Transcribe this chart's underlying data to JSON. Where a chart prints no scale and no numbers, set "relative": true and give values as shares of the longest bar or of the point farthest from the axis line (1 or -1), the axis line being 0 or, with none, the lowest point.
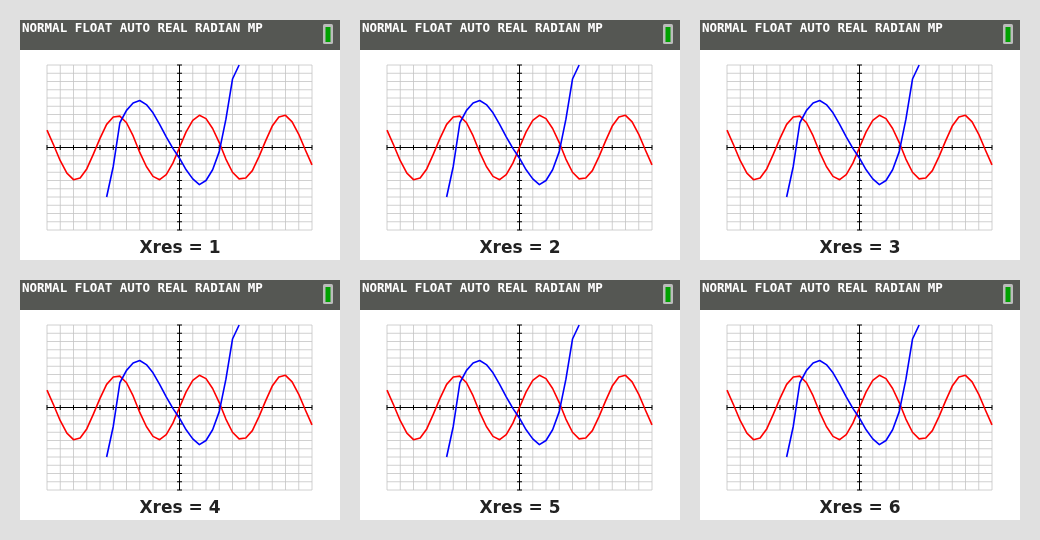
{
  "chart_data": [
    {
      "type": "line",
      "title": "Xres = 1",
      "annotations": [
        "NORMAL FLOAT AUTO REAL RADIAN MP"
      ],
      "relative": true,
      "grid": true,
      "categories": [
        null,
        null,
        null,
        null,
        null,
        null,
        null,
        null,
        null,
        null,
        null,
        null,
        null,
        null,
        null,
        null,
        null,
        null,
        null,
        null,
        null,
        null,
        null,
        null,
        null,
        null,
        null,
        null,
        null,
        null,
        null,
        null,
        null,
        null,
        null,
        null,
        null,
        null,
        null,
        null,
        null
      ],
      "series": [
        {
          "color": "#ff0000",
          "values": [
            0.21,
            0.03,
            -0.16,
            -0.31,
            -0.39,
            -0.37,
            -0.26,
            -0.08,
            0.11,
            0.28,
            0.37,
            0.38,
            0.3,
            0.14,
            -0.06,
            -0.23,
            -0.35,
            -0.39,
            -0.33,
            -0.19,
            0,
            0.19,
            0.33,
            0.39,
            0.35,
            0.23,
            0.06,
            -0.14,
            -0.3,
            -0.38,
            -0.37,
            -0.28,
            -0.11,
            0.08,
            0.26,
            0.37,
            0.39,
            0.31,
            0.16,
            -0.03,
            -0.21
          ]
        },
        {
          "color": "#0000ff",
          "values": [
            null,
            null,
            null,
            null,
            null,
            null,
            null,
            null,
            null,
            -0.6,
            -0.23,
            0.3,
            0.45,
            0.54,
            0.57,
            0.52,
            0.42,
            0.28,
            0.13,
            -0.01,
            -0.13,
            -0.27,
            -0.38,
            -0.45,
            -0.4,
            -0.27,
            -0.05,
            0.34,
            0.83,
            1,
            null,
            null,
            null,
            null,
            null,
            null,
            null,
            null,
            null,
            null,
            null
          ]
        }
      ]
    },
    {
      "type": "line",
      "title": "Xres = 2",
      "annotations": [
        "NORMAL FLOAT AUTO REAL RADIAN MP"
      ],
      "relative": true,
      "grid": true,
      "categories": [
        null,
        null,
        null,
        null,
        null,
        null,
        null,
        null,
        null,
        null,
        null,
        null,
        null,
        null,
        null,
        null,
        null,
        null,
        null,
        null,
        null,
        null,
        null,
        null,
        null,
        null,
        null,
        null,
        null,
        null,
        null,
        null,
        null,
        null,
        null,
        null,
        null,
        null,
        null,
        null,
        null
      ],
      "series": [
        {
          "color": "#ff0000",
          "values": [
            0.21,
            0.03,
            -0.16,
            -0.31,
            -0.39,
            -0.37,
            -0.26,
            -0.08,
            0.11,
            0.28,
            0.37,
            0.38,
            0.3,
            0.14,
            -0.06,
            -0.23,
            -0.35,
            -0.39,
            -0.33,
            -0.19,
            0,
            0.19,
            0.33,
            0.39,
            0.35,
            0.23,
            0.06,
            -0.14,
            -0.3,
            -0.38,
            -0.37,
            -0.28,
            -0.11,
            0.08,
            0.26,
            0.37,
            0.39,
            0.31,
            0.16,
            -0.03,
            -0.21
          ]
        },
        {
          "color": "#0000ff",
          "values": [
            null,
            null,
            null,
            null,
            null,
            null,
            null,
            null,
            null,
            -0.6,
            -0.23,
            0.3,
            0.45,
            0.54,
            0.57,
            0.52,
            0.42,
            0.28,
            0.13,
            -0.01,
            -0.13,
            -0.27,
            -0.38,
            -0.45,
            -0.4,
            -0.27,
            -0.05,
            0.34,
            0.83,
            1,
            null,
            null,
            null,
            null,
            null,
            null,
            null,
            null,
            null,
            null,
            null
          ]
        }
      ]
    },
    {
      "type": "line",
      "title": "Xres = 3",
      "annotations": [
        "NORMAL FLOAT AUTO REAL RADIAN MP"
      ],
      "relative": true,
      "grid": true,
      "categories": [
        null,
        null,
        null,
        null,
        null,
        null,
        null,
        null,
        null,
        null,
        null,
        null,
        null,
        null,
        null,
        null,
        null,
        null,
        null,
        null,
        null,
        null,
        null,
        null,
        null,
        null,
        null,
        null,
        null,
        null,
        null,
        null,
        null,
        null,
        null,
        null,
        null,
        null,
        null,
        null,
        null
      ],
      "series": [
        {
          "color": "#ff0000",
          "values": [
            0.21,
            0.03,
            -0.16,
            -0.31,
            -0.39,
            -0.37,
            -0.26,
            -0.08,
            0.11,
            0.28,
            0.37,
            0.38,
            0.3,
            0.14,
            -0.06,
            -0.23,
            -0.35,
            -0.39,
            -0.33,
            -0.19,
            0,
            0.19,
            0.33,
            0.39,
            0.35,
            0.23,
            0.06,
            -0.14,
            -0.3,
            -0.38,
            -0.37,
            -0.28,
            -0.11,
            0.08,
            0.26,
            0.37,
            0.39,
            0.31,
            0.16,
            -0.03,
            -0.21
          ]
        },
        {
          "color": "#0000ff",
          "values": [
            null,
            null,
            null,
            null,
            null,
            null,
            null,
            null,
            null,
            -0.6,
            -0.23,
            0.3,
            0.45,
            0.54,
            0.57,
            0.52,
            0.42,
            0.28,
            0.13,
            -0.01,
            -0.13,
            -0.27,
            -0.38,
            -0.45,
            -0.4,
            -0.27,
            -0.05,
            0.34,
            0.83,
            1,
            null,
            null,
            null,
            null,
            null,
            null,
            null,
            null,
            null,
            null,
            null
          ]
        }
      ]
    },
    {
      "type": "line",
      "title": "Xres = 4",
      "annotations": [
        "NORMAL FLOAT AUTO REAL RADIAN MP"
      ],
      "relative": true,
      "grid": true,
      "categories": [
        null,
        null,
        null,
        null,
        null,
        null,
        null,
        null,
        null,
        null,
        null,
        null,
        null,
        null,
        null,
        null,
        null,
        null,
        null,
        null,
        null,
        null,
        null,
        null,
        null,
        null,
        null,
        null,
        null,
        null,
        null,
        null,
        null,
        null,
        null,
        null,
        null,
        null,
        null,
        null,
        null
      ],
      "series": [
        {
          "color": "#ff0000",
          "values": [
            0.21,
            0.03,
            -0.16,
            -0.31,
            -0.39,
            -0.37,
            -0.26,
            -0.08,
            0.11,
            0.28,
            0.37,
            0.38,
            0.3,
            0.14,
            -0.06,
            -0.23,
            -0.35,
            -0.39,
            -0.33,
            -0.19,
            0,
            0.19,
            0.33,
            0.39,
            0.35,
            0.23,
            0.06,
            -0.14,
            -0.3,
            -0.38,
            -0.37,
            -0.28,
            -0.11,
            0.08,
            0.26,
            0.37,
            0.39,
            0.31,
            0.16,
            -0.03,
            -0.21
          ]
        },
        {
          "color": "#0000ff",
          "values": [
            null,
            null,
            null,
            null,
            null,
            null,
            null,
            null,
            null,
            -0.6,
            -0.23,
            0.3,
            0.45,
            0.54,
            0.57,
            0.52,
            0.42,
            0.28,
            0.13,
            -0.01,
            -0.13,
            -0.27,
            -0.38,
            -0.45,
            -0.4,
            -0.27,
            -0.05,
            0.34,
            0.83,
            1,
            null,
            null,
            null,
            null,
            null,
            null,
            null,
            null,
            null,
            null,
            null
          ]
        }
      ]
    },
    {
      "type": "line",
      "title": "Xres = 5",
      "annotations": [
        "NORMAL FLOAT AUTO REAL RADIAN MP"
      ],
      "relative": true,
      "grid": true,
      "categories": [
        null,
        null,
        null,
        null,
        null,
        null,
        null,
        null,
        null,
        null,
        null,
        null,
        null,
        null,
        null,
        null,
        null,
        null,
        null,
        null,
        null,
        null,
        null,
        null,
        null,
        null,
        null,
        null,
        null,
        null,
        null,
        null,
        null,
        null,
        null,
        null,
        null,
        null,
        null,
        null,
        null
      ],
      "series": [
        {
          "color": "#ff0000",
          "values": [
            0.21,
            0.03,
            -0.16,
            -0.31,
            -0.39,
            -0.37,
            -0.26,
            -0.08,
            0.11,
            0.28,
            0.37,
            0.38,
            0.3,
            0.14,
            -0.06,
            -0.23,
            -0.35,
            -0.39,
            -0.33,
            -0.19,
            0,
            0.19,
            0.33,
            0.39,
            0.35,
            0.23,
            0.06,
            -0.14,
            -0.3,
            -0.38,
            -0.37,
            -0.28,
            -0.11,
            0.08,
            0.26,
            0.37,
            0.39,
            0.31,
            0.16,
            -0.03,
            -0.21
          ]
        },
        {
          "color": "#0000ff",
          "values": [
            null,
            null,
            null,
            null,
            null,
            null,
            null,
            null,
            null,
            -0.6,
            -0.23,
            0.3,
            0.45,
            0.54,
            0.57,
            0.52,
            0.42,
            0.28,
            0.13,
            -0.01,
            -0.13,
            -0.27,
            -0.38,
            -0.45,
            -0.4,
            -0.27,
            -0.05,
            0.34,
            0.83,
            1,
            null,
            null,
            null,
            null,
            null,
            null,
            null,
            null,
            null,
            null,
            null
          ]
        }
      ]
    },
    {
      "type": "line",
      "title": "Xres = 6",
      "annotations": [
        "NORMAL FLOAT AUTO REAL RADIAN MP"
      ],
      "relative": true,
      "grid": true,
      "categories": [
        null,
        null,
        null,
        null,
        null,
        null,
        null,
        null,
        null,
        null,
        null,
        null,
        null,
        null,
        null,
        null,
        null,
        null,
        null,
        null,
        null,
        null,
        null,
        null,
        null,
        null,
        null,
        null,
        null,
        null,
        null,
        null,
        null,
        null,
        null,
        null,
        null,
        null,
        null,
        null,
        null
      ],
      "series": [
        {
          "color": "#ff0000",
          "values": [
            0.21,
            0.03,
            -0.16,
            -0.31,
            -0.39,
            -0.37,
            -0.26,
            -0.08,
            0.11,
            0.28,
            0.37,
            0.38,
            0.3,
            0.14,
            -0.06,
            -0.23,
            -0.35,
            -0.39,
            -0.33,
            -0.19,
            0,
            0.19,
            0.33,
            0.39,
            0.35,
            0.23,
            0.06,
            -0.14,
            -0.3,
            -0.38,
            -0.37,
            -0.28,
            -0.11,
            0.08,
            0.26,
            0.37,
            0.39,
            0.31,
            0.16,
            -0.03,
            -0.21
          ]
        },
        {
          "color": "#0000ff",
          "values": [
            null,
            null,
            null,
            null,
            null,
            null,
            null,
            null,
            null,
            -0.6,
            -0.23,
            0.3,
            0.45,
            0.54,
            0.57,
            0.52,
            0.42,
            0.28,
            0.13,
            -0.01,
            -0.13,
            -0.27,
            -0.38,
            -0.45,
            -0.4,
            -0.27,
            -0.05,
            0.34,
            0.83,
            1,
            null,
            null,
            null,
            null,
            null,
            null,
            null,
            null,
            null,
            null,
            null
          ]
        }
      ]
    }
  ]
}
